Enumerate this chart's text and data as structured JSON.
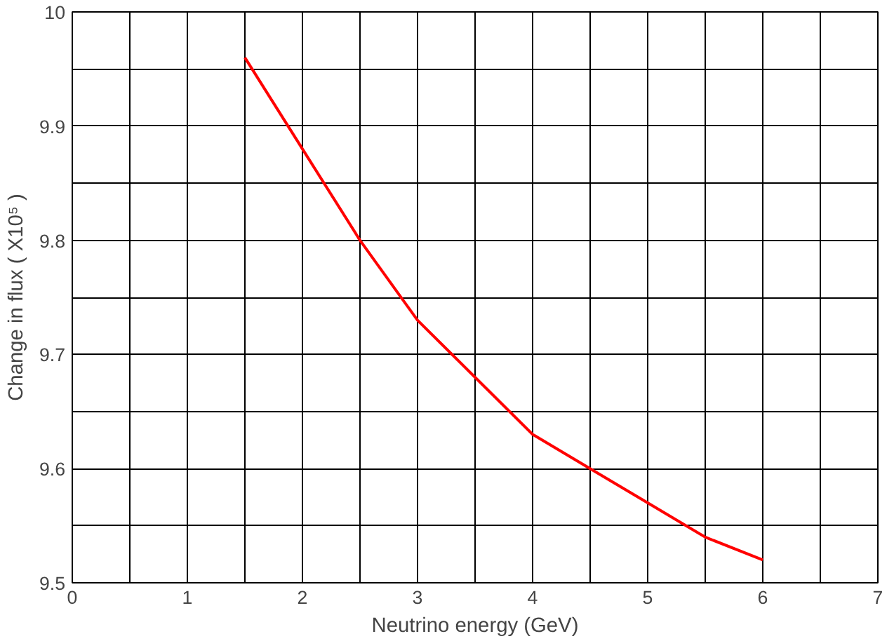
{
  "chart_data": {
    "type": "line",
    "xlabel": "Neutrino energy (GeV)",
    "ylabel": "Change in flux ( X10⁵ )",
    "x": [
      1.5,
      2,
      2.5,
      3,
      3.5,
      4,
      4.5,
      5,
      5.5,
      6
    ],
    "series": [
      {
        "color": "#ff0000",
        "values": [
          9.96,
          9.88,
          9.8,
          9.73,
          9.68,
          9.63,
          9.6,
          9.57,
          9.54,
          9.52
        ]
      }
    ],
    "xlim": [
      0,
      7
    ],
    "xticks": [
      0,
      {
        "value": 0.5,
        "label": null
      },
      1,
      {
        "value": 1.5,
        "label": null
      },
      2,
      {
        "value": 2.5,
        "label": null
      },
      3,
      {
        "value": 3.5,
        "label": null
      },
      4,
      {
        "value": 4.5,
        "label": null
      },
      5,
      {
        "value": 5.5,
        "label": null
      },
      6,
      {
        "value": 6.5,
        "label": null
      },
      7
    ],
    "ylim": [
      9.5,
      10
    ],
    "yticks": [
      9.5,
      {
        "value": 9.55,
        "label": null
      },
      9.6,
      {
        "value": 9.65,
        "label": null
      },
      9.7,
      {
        "value": 9.75,
        "label": null
      },
      9.8,
      {
        "value": 9.85,
        "label": null
      },
      9.9,
      {
        "value": 9.95,
        "label": null
      },
      10
    ],
    "grid": true,
    "marker": "none",
    "line_style": "solid"
  }
}
